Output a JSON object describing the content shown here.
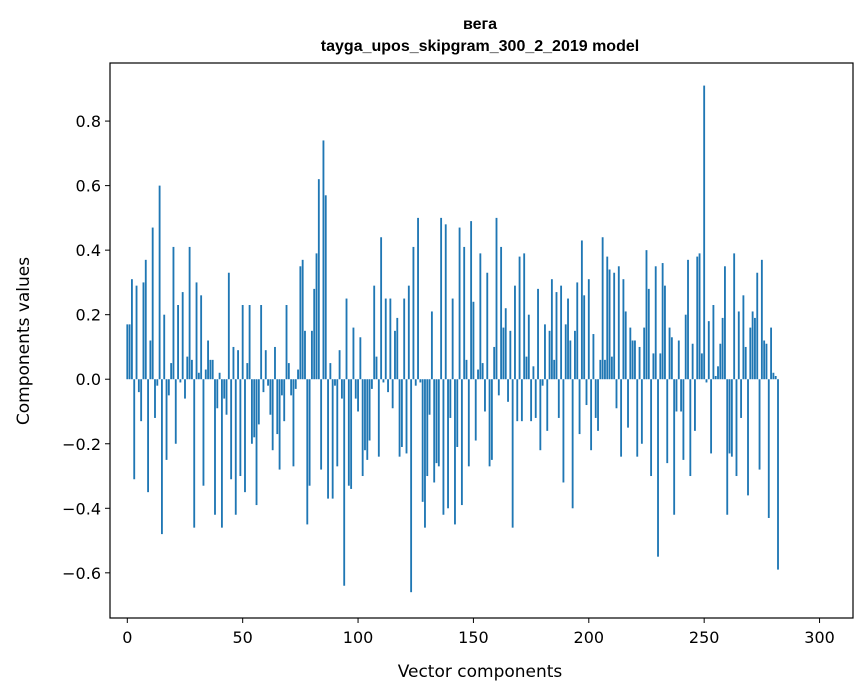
{
  "chart_data": {
    "type": "bar",
    "title": "вега",
    "subtitle": "tayga_upos_skipgram_300_2_2019 model",
    "xlabel": "Vector components",
    "ylabel": "Components values",
    "xlim": [
      -7.5,
      314.5
    ],
    "ylim": [
      -0.74,
      0.98
    ],
    "xticks": [
      0,
      50,
      100,
      150,
      200,
      250,
      300
    ],
    "xtick_labels": [
      "0",
      "50",
      "100",
      "150",
      "200",
      "250",
      "300"
    ],
    "yticks": [
      -0.6,
      -0.4,
      -0.2,
      0.0,
      0.2,
      0.4,
      0.6,
      0.8
    ],
    "ytick_labels": [
      "−0.6",
      "−0.4",
      "−0.2",
      "0.0",
      "0.2",
      "0.4",
      "0.6",
      "0.8"
    ],
    "bar_color": "#1f77b4",
    "grid": false,
    "values": [
      0.17,
      0.17,
      0.31,
      -0.31,
      0.29,
      -0.04,
      -0.13,
      0.3,
      0.37,
      -0.35,
      0.12,
      0.47,
      -0.12,
      -0.02,
      0.6,
      -0.48,
      0.2,
      -0.25,
      -0.05,
      0.05,
      0.41,
      -0.2,
      0.23,
      -0.01,
      0.27,
      -0.06,
      0.07,
      0.41,
      0.06,
      -0.46,
      0.3,
      0.02,
      0.26,
      -0.33,
      0.03,
      0.12,
      0.06,
      0.06,
      -0.42,
      -0.09,
      0.02,
      -0.46,
      -0.06,
      -0.11,
      0.33,
      -0.31,
      0.1,
      -0.42,
      0.09,
      -0.3,
      0.23,
      -0.35,
      0.05,
      0.23,
      -0.2,
      -0.18,
      -0.39,
      -0.14,
      0.23,
      -0.04,
      0.09,
      -0.02,
      -0.11,
      -0.22,
      0.1,
      -0.17,
      -0.28,
      -0.05,
      -0.13,
      0.23,
      0.05,
      -0.05,
      -0.27,
      -0.03,
      0.03,
      0.35,
      0.37,
      0.15,
      -0.45,
      -0.33,
      0.15,
      0.28,
      0.39,
      0.62,
      -0.28,
      0.74,
      0.57,
      -0.37,
      0.05,
      -0.37,
      -0.02,
      -0.27,
      0.09,
      -0.06,
      -0.64,
      0.25,
      -0.33,
      -0.34,
      0.16,
      -0.06,
      -0.1,
      0.13,
      -0.3,
      -0.22,
      -0.25,
      -0.19,
      -0.03,
      0.29,
      0.07,
      -0.24,
      0.44,
      -0.01,
      0.25,
      -0.04,
      0.25,
      -0.09,
      0.15,
      0.19,
      -0.24,
      -0.21,
      0.25,
      -0.23,
      0.29,
      -0.66,
      0.41,
      -0.02,
      0.5,
      -0.01,
      -0.38,
      -0.46,
      -0.3,
      -0.11,
      0.21,
      -0.32,
      -0.26,
      -0.27,
      0.5,
      -0.42,
      0.48,
      -0.4,
      -0.12,
      0.25,
      -0.45,
      -0.21,
      0.47,
      -0.39,
      0.41,
      0.06,
      -0.27,
      0.49,
      0.24,
      -0.19,
      0.03,
      0.39,
      0.05,
      -0.1,
      0.33,
      -0.27,
      -0.25,
      0.1,
      0.5,
      -0.05,
      0.41,
      0.16,
      0.22,
      -0.07,
      0.15,
      -0.46,
      0.29,
      -0.13,
      0.38,
      -0.13,
      0.39,
      0.07,
      0.2,
      -0.13,
      0.04,
      -0.12,
      0.28,
      -0.22,
      -0.02,
      0.17,
      -0.16,
      0.15,
      0.31,
      0.06,
      0.27,
      -0.12,
      0.29,
      -0.32,
      0.17,
      0.25,
      0.12,
      -0.4,
      0.15,
      0.3,
      -0.17,
      0.43,
      0.26,
      -0.08,
      0.31,
      -0.22,
      0.14,
      -0.12,
      -0.16,
      0.06,
      0.44,
      0.06,
      0.38,
      0.34,
      0.07,
      0.33,
      -0.09,
      0.35,
      -0.24,
      0.31,
      0.21,
      -0.15,
      0.16,
      0.12,
      0.12,
      -0.24,
      0.1,
      -0.2,
      0.16,
      0.4,
      0.28,
      -0.3,
      0.08,
      0.35,
      -0.55,
      0.08,
      0.36,
      0.29,
      -0.26,
      0.16,
      0.13,
      -0.42,
      -0.1,
      0.12,
      -0.1,
      -0.25,
      0.2,
      0.37,
      -0.3,
      0.11,
      -0.16,
      0.38,
      0.39,
      0.08,
      0.91,
      -0.01,
      0.18,
      -0.23,
      0.23,
      0.01,
      0.04,
      0.11,
      0.19,
      0.35,
      -0.42,
      -0.23,
      -0.24,
      0.39,
      -0.3,
      0.21,
      -0.12,
      0.26,
      0.1,
      -0.36,
      0.16,
      0.21,
      0.19,
      0.33,
      -0.28,
      0.37,
      0.12,
      0.11,
      -0.43,
      0.16,
      0.02,
      0.01,
      -0.59
    ]
  }
}
